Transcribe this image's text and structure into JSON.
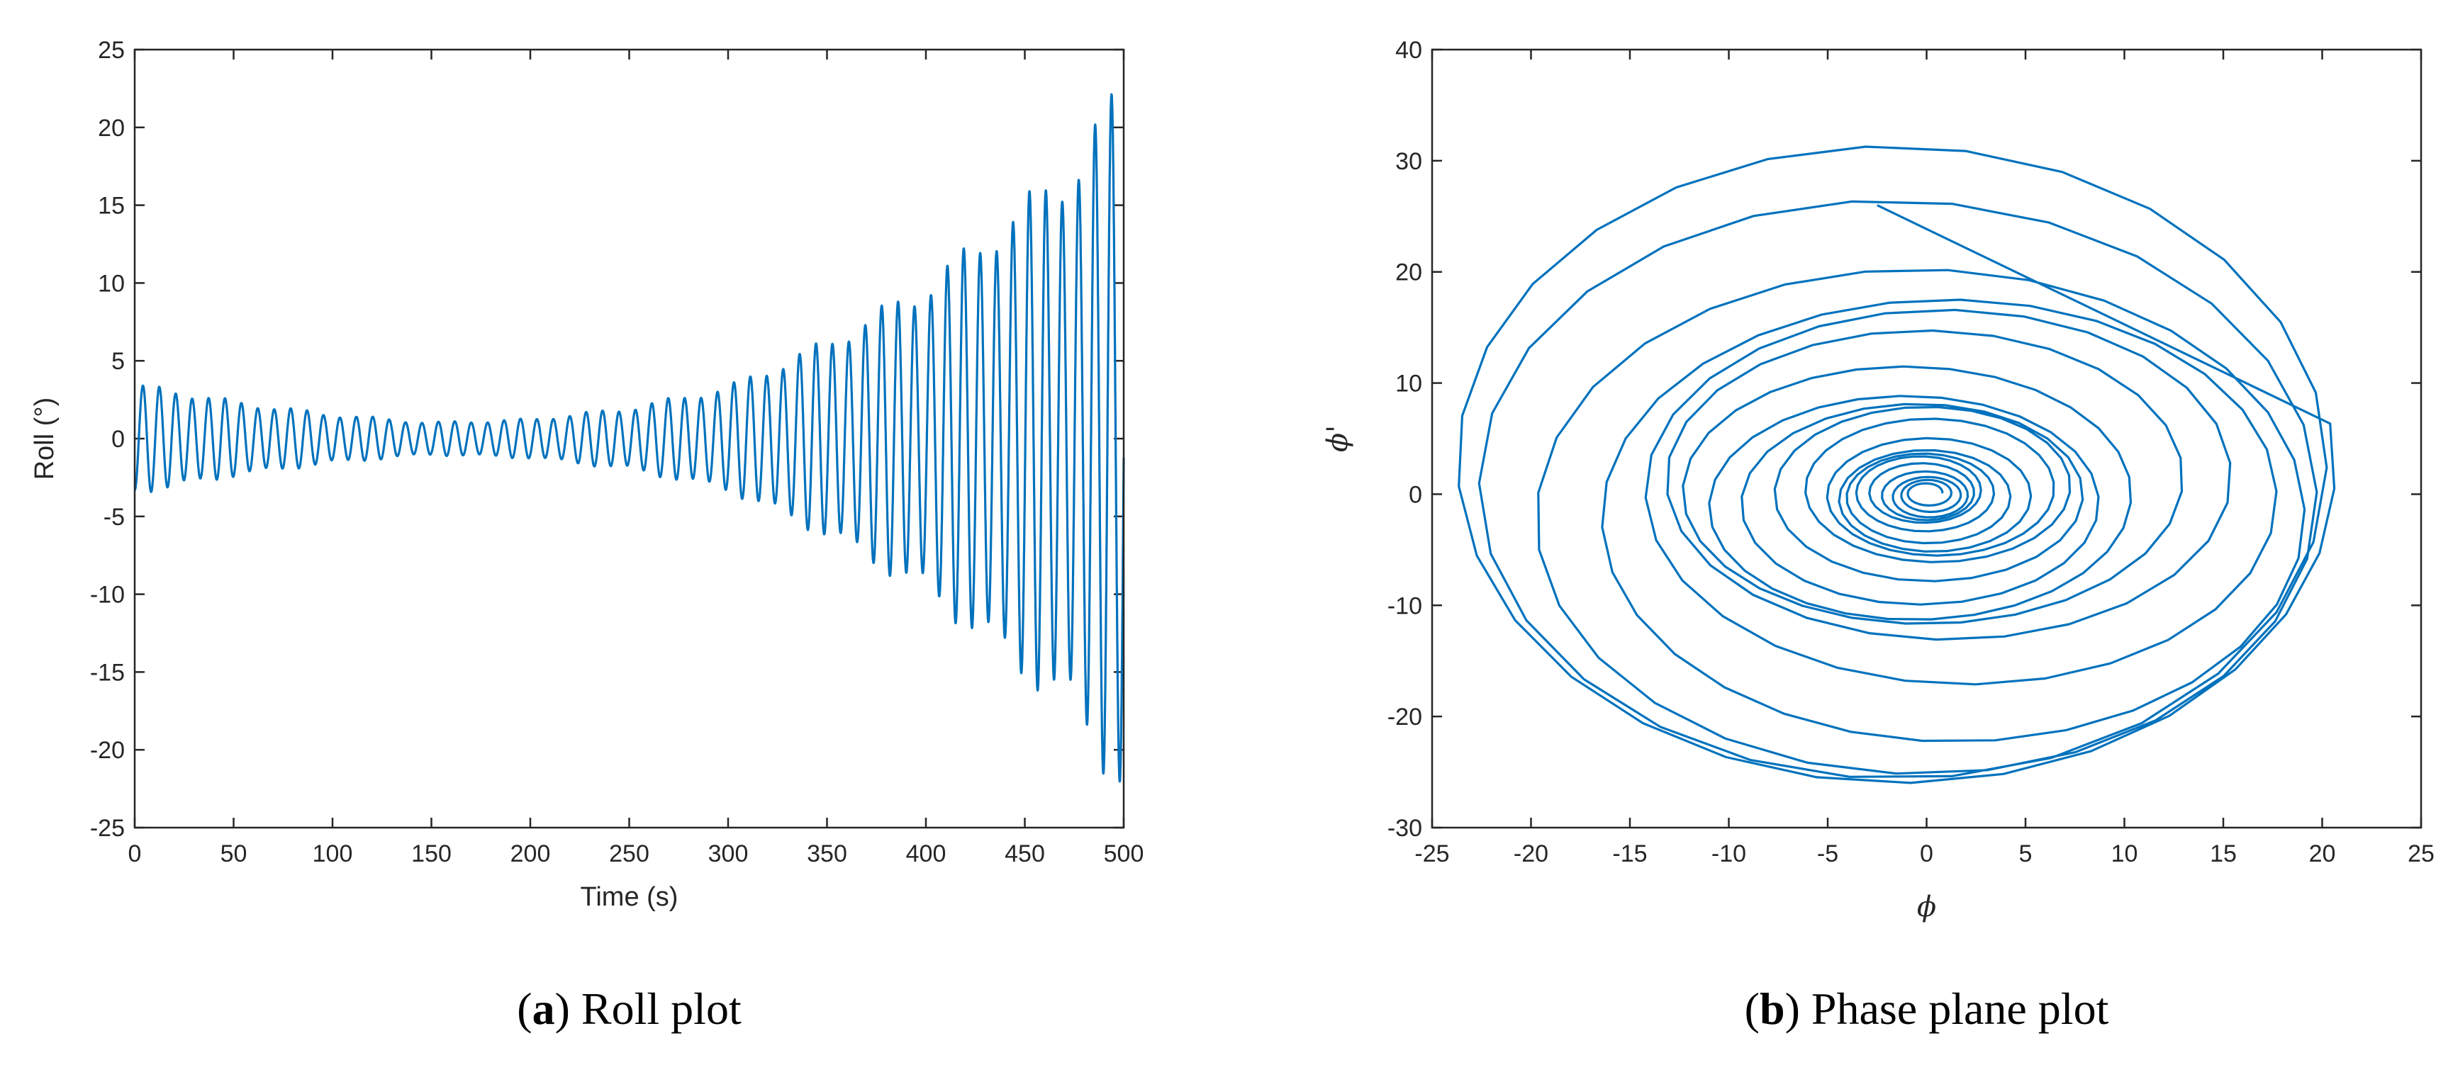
{
  "chart_data": [
    {
      "type": "line",
      "panel": "a",
      "caption_letter": "a",
      "caption_text": "Roll plot",
      "xlabel": "Time (s)",
      "ylabel": "Roll (°)",
      "xlim": [
        0,
        500
      ],
      "ylim": [
        -25,
        25
      ],
      "xticks": [
        0,
        50,
        100,
        150,
        200,
        250,
        300,
        350,
        400,
        450,
        500
      ],
      "yticks": [
        -25,
        -20,
        -15,
        -10,
        -5,
        0,
        5,
        10,
        15,
        20,
        25
      ],
      "grid": false,
      "color": "#0072bd",
      "oscillation_period_s": 8.3,
      "envelope": {
        "t": [
          0,
          20,
          50,
          100,
          150,
          200,
          250,
          300,
          350,
          400,
          450,
          475,
          490,
          500
        ],
        "amp": [
          3.3,
          3.0,
          2.3,
          1.5,
          1.0,
          1.2,
          1.9,
          3.2,
          6.0,
          9.5,
          14.5,
          17.0,
          20.0,
          22.0
        ]
      }
    },
    {
      "type": "line",
      "panel": "b",
      "caption_letter": "b",
      "caption_text": "Phase plane plot",
      "xlabel": "ϕ",
      "ylabel": "ϕ'",
      "xlim": [
        -25,
        25
      ],
      "ylim": [
        -30,
        40
      ],
      "xticks": [
        -25,
        -20,
        -15,
        -10,
        -5,
        0,
        5,
        10,
        15,
        20,
        25
      ],
      "yticks": [
        -30,
        -20,
        -10,
        0,
        10,
        20,
        30,
        40
      ],
      "grid": false,
      "color": "#0072bd",
      "spiral": {
        "phi_amp": [
          0.8,
          1.2,
          1.6,
          2.0,
          2.5,
          3.0,
          3.6,
          4.2,
          5.0,
          6.0,
          7.0,
          8.2,
          9.5,
          11.0,
          12.8,
          14.5,
          16.5,
          18.5,
          20.5,
          22.0
        ],
        "dphi_amp": [
          0.8,
          1.2,
          1.6,
          2.0,
          2.5,
          3.0,
          3.6,
          4.2,
          5.0,
          6.0,
          7.0,
          8.2,
          9.5,
          11.0,
          12.8,
          15.0,
          18.0,
          21.0,
          25.0,
          28.5
        ],
        "end_point": [
          -2.5,
          26.0
        ],
        "outer_extremes": {
          "phi_min": -20.0,
          "phi_max": 22.0,
          "dphi_min": -28.0,
          "dphi_max": 31.5
        }
      }
    }
  ]
}
